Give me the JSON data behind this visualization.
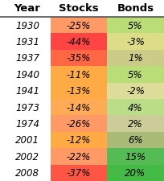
{
  "years": [
    "1930",
    "1931",
    "1937",
    "1940",
    "1941",
    "1973",
    "1974",
    "2001",
    "2002",
    "2008"
  ],
  "stocks": [
    "-25%",
    "-44%",
    "-35%",
    "-11%",
    "-13%",
    "-14%",
    "-26%",
    "-12%",
    "-22%",
    "-37%"
  ],
  "bonds": [
    "5%",
    "-3%",
    "1%",
    "5%",
    "-2%",
    "4%",
    "2%",
    "6%",
    "15%",
    "20%"
  ],
  "stock_colors": [
    "#FF9966",
    "#FF4444",
    "#FF6644",
    "#FFAA44",
    "#FFAA44",
    "#FFAA55",
    "#FF9966",
    "#FFAA44",
    "#FF9966",
    "#FF5544"
  ],
  "bond_colors": [
    "#BBDD77",
    "#DDDD88",
    "#CCCC88",
    "#BBDD77",
    "#DDDD99",
    "#BBDD88",
    "#CCCC99",
    "#AABB77",
    "#55BB55",
    "#44BB44"
  ],
  "header": [
    "Year",
    "Stocks",
    "Bonds"
  ],
  "bg_color": "#FFFFFF",
  "text_color": "#000000",
  "font_size": 8.5,
  "header_fontsize": 9.5
}
